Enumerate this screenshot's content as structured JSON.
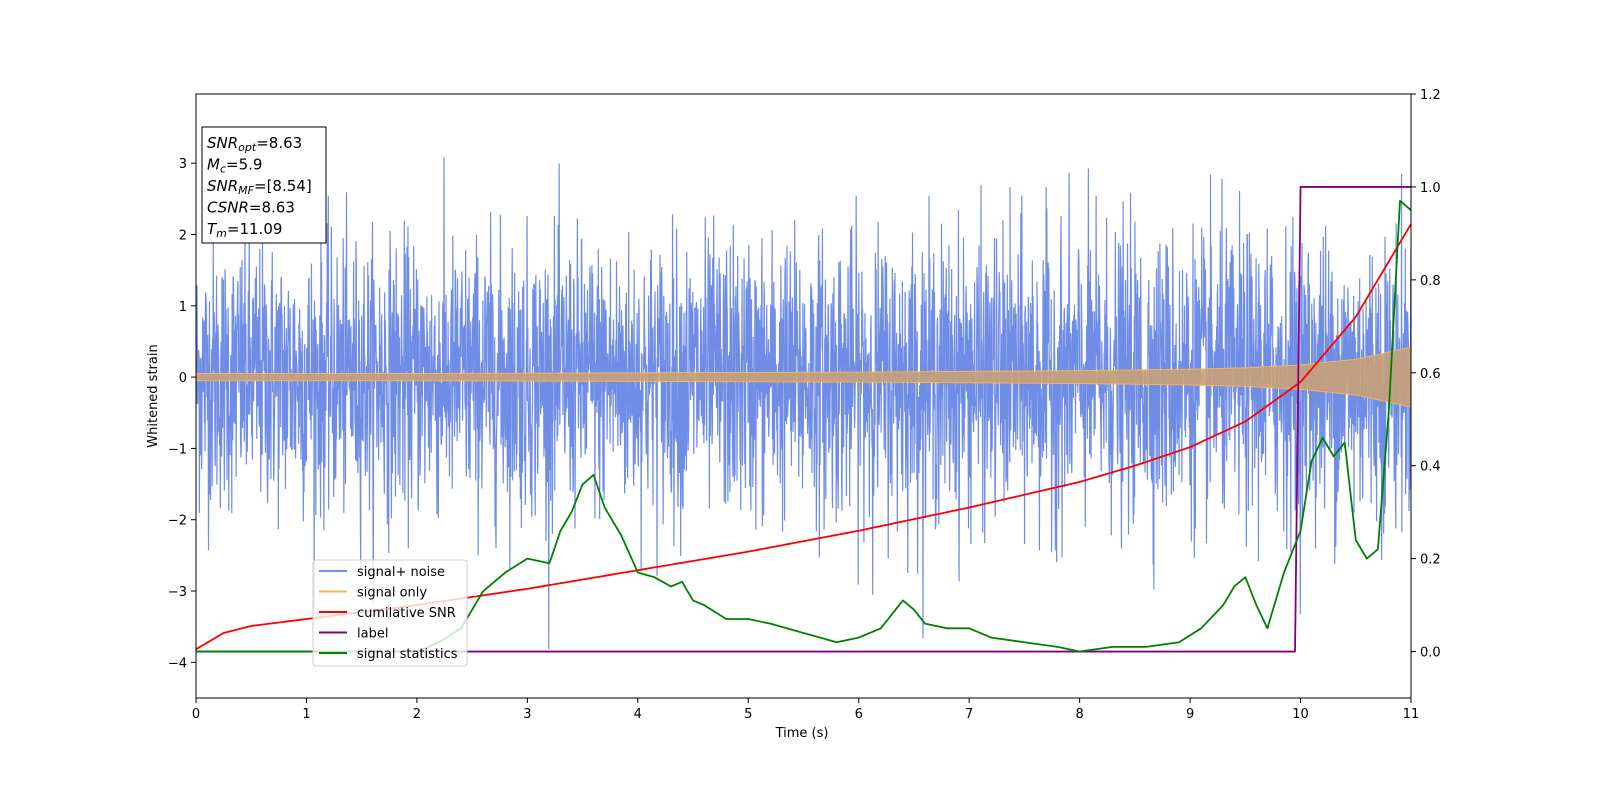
{
  "chart_data": {
    "type": "line",
    "xlabel": "Time (s)",
    "ylabel": "Whitened strain",
    "xlim": [
      0,
      11
    ],
    "ylim": [
      -4.5,
      3.97
    ],
    "y2lim": [
      -0.1,
      1.2
    ],
    "xticks": [
      "0",
      "1",
      "2",
      "3",
      "4",
      "5",
      "6",
      "7",
      "8",
      "9",
      "10",
      "11"
    ],
    "yticks": [
      "−4",
      "−3",
      "−2",
      "−1",
      "0",
      "1",
      "2",
      "3"
    ],
    "y2ticks": [
      "0.0",
      "0.2",
      "0.4",
      "0.6",
      "0.8",
      "1.0",
      "1.2"
    ],
    "grid": false,
    "legend_position": "lower-left",
    "info_box": {
      "lines": [
        {
          "symbol": "SNR",
          "sub": "opt",
          "value": "=8.63"
        },
        {
          "symbol": "M",
          "sub": "c",
          "value": "=5.9"
        },
        {
          "symbol": "SNR",
          "sub": "MF",
          "value": "=[8.54]"
        },
        {
          "symbol": "CSNR",
          "sub": "",
          "value": "=8.63"
        },
        {
          "symbol": "T",
          "sub": "m",
          "value": "=11.09"
        }
      ]
    },
    "series": [
      {
        "name": "signal+ noise",
        "color": "#6f8de6",
        "axis": "left",
        "description_of_values": "approx. white noise, amplitude envelope",
        "x": [
          0,
          11
        ],
        "upper_envelope": [
          2.2,
          2.4
        ],
        "lower_envelope": [
          -2.2,
          -2.4
        ],
        "extreme_max": 3.6,
        "extreme_min": -4.15
      },
      {
        "name": "signal only",
        "color": "#f5b455",
        "axis": "left",
        "x": [
          0,
          2,
          4,
          6,
          8,
          9,
          9.5,
          10,
          10.5,
          11
        ],
        "amplitude": [
          0.05,
          0.05,
          0.06,
          0.07,
          0.09,
          0.11,
          0.13,
          0.17,
          0.25,
          0.42
        ]
      },
      {
        "name": "cumilative SNR",
        "color": "#ff0000",
        "axis": "right",
        "x": [
          0,
          0.25,
          0.5,
          1,
          2,
          3,
          4,
          5,
          6,
          7,
          8,
          8.5,
          9,
          9.5,
          10,
          10.5,
          11
        ],
        "values": [
          0.005,
          0.04,
          0.055,
          0.07,
          0.1,
          0.135,
          0.175,
          0.215,
          0.26,
          0.31,
          0.365,
          0.4,
          0.44,
          0.495,
          0.58,
          0.72,
          0.92
        ]
      },
      {
        "name": "label",
        "color": "#800080",
        "axis": "right",
        "x": [
          0,
          9.95,
          10.0,
          11
        ],
        "values": [
          0,
          0,
          1,
          1
        ]
      },
      {
        "name": "signal statistics",
        "color": "#008000",
        "axis": "right",
        "x": [
          0,
          1,
          2,
          2.2,
          2.4,
          2.6,
          2.8,
          3.0,
          3.2,
          3.3,
          3.4,
          3.5,
          3.6,
          3.7,
          3.85,
          4.0,
          4.15,
          4.3,
          4.4,
          4.5,
          4.6,
          4.8,
          5.0,
          5.2,
          5.5,
          5.8,
          6.0,
          6.2,
          6.3,
          6.4,
          6.5,
          6.6,
          6.8,
          7.0,
          7.2,
          7.5,
          7.8,
          8.0,
          8.3,
          8.6,
          8.9,
          9.1,
          9.3,
          9.4,
          9.5,
          9.6,
          9.7,
          9.85,
          9.95,
          10.0,
          10.1,
          10.2,
          10.3,
          10.4,
          10.5,
          10.6,
          10.7,
          10.8,
          10.9,
          11.0
        ],
        "values": [
          0.0,
          0.0,
          0.0,
          0.02,
          0.05,
          0.13,
          0.17,
          0.2,
          0.19,
          0.26,
          0.3,
          0.36,
          0.38,
          0.31,
          0.25,
          0.17,
          0.16,
          0.14,
          0.15,
          0.11,
          0.1,
          0.07,
          0.07,
          0.06,
          0.04,
          0.02,
          0.03,
          0.05,
          0.08,
          0.11,
          0.09,
          0.06,
          0.05,
          0.05,
          0.03,
          0.02,
          0.01,
          0.0,
          0.01,
          0.01,
          0.02,
          0.05,
          0.1,
          0.14,
          0.16,
          0.1,
          0.05,
          0.17,
          0.23,
          0.26,
          0.41,
          0.46,
          0.42,
          0.45,
          0.24,
          0.2,
          0.22,
          0.52,
          0.97,
          0.95
        ]
      }
    ]
  }
}
